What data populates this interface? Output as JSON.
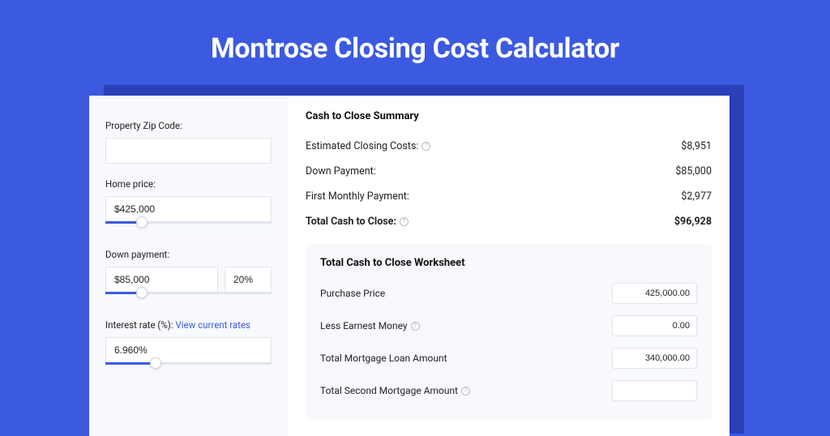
{
  "page": {
    "title": "Montrose Closing Cost Calculator",
    "background_color": "#3b5ae0",
    "accent_color": "#3b5ae0",
    "shadow_color": "#2a3fb8",
    "card_bg": "#ffffff",
    "panel_bg": "#f7f9fc"
  },
  "form": {
    "zip": {
      "label": "Property Zip Code:",
      "value": ""
    },
    "home_price": {
      "label": "Home price:",
      "value": "$425,000",
      "slider_fill_pct": 22
    },
    "down_payment": {
      "label": "Down payment:",
      "value": "$85,000",
      "percent": "20%",
      "slider_fill_pct": 22
    },
    "interest_rate": {
      "label": "Interest rate (%):",
      "link_text": "View current rates",
      "value": "6.960%",
      "slider_fill_pct": 30
    }
  },
  "summary": {
    "title": "Cash to Close Summary",
    "rows": [
      {
        "label": "Estimated Closing Costs:",
        "help": true,
        "value": "$8,951",
        "bold": false
      },
      {
        "label": "Down Payment:",
        "help": false,
        "value": "$85,000",
        "bold": false
      },
      {
        "label": "First Monthly Payment:",
        "help": false,
        "value": "$2,977",
        "bold": false
      },
      {
        "label": "Total Cash to Close:",
        "help": true,
        "value": "$96,928",
        "bold": true
      }
    ]
  },
  "worksheet": {
    "title": "Total Cash to Close Worksheet",
    "rows": [
      {
        "label": "Purchase Price",
        "help": false,
        "value": "425,000.00"
      },
      {
        "label": "Less Earnest Money",
        "help": true,
        "value": "0.00"
      },
      {
        "label": "Total Mortgage Loan Amount",
        "help": false,
        "value": "340,000.00"
      },
      {
        "label": "Total Second Mortgage Amount",
        "help": true,
        "value": ""
      }
    ]
  }
}
